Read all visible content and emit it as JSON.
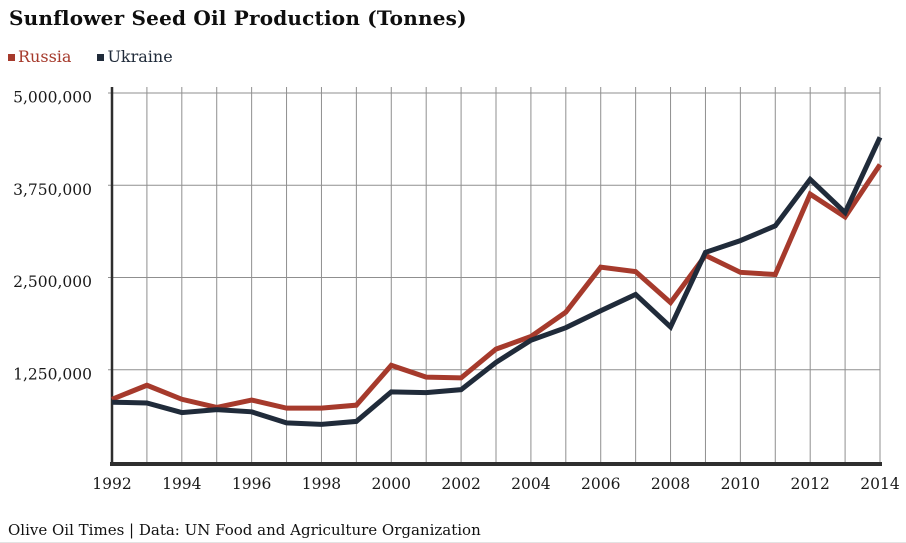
{
  "header": {
    "title": "Sunflower Seed Oil Production (Tonnes)"
  },
  "footer": {
    "text": "Olive Oil Times | Data: UN Food and Agriculture Organization"
  },
  "chart_data": {
    "type": "line",
    "title": "Sunflower Seed Oil Production (Tonnes)",
    "x": [
      1992,
      1993,
      1994,
      1995,
      1996,
      1997,
      1998,
      1999,
      2000,
      2001,
      2002,
      2003,
      2004,
      2005,
      2006,
      2007,
      2008,
      2009,
      2010,
      2011,
      2012,
      2013,
      2014
    ],
    "x_tick_labels": [
      "1992",
      "1994",
      "1996",
      "1998",
      "2000",
      "2002",
      "2004",
      "2006",
      "2008",
      "2010",
      "2012",
      "2014"
    ],
    "y_ticks": [
      {
        "value": 1250000,
        "label": "1,250,000"
      },
      {
        "value": 2500000,
        "label": "2,500,000"
      },
      {
        "value": 3750000,
        "label": "3,750,000"
      },
      {
        "value": 5000000,
        "label": "5,000,000"
      }
    ],
    "xlim": [
      1992,
      2014
    ],
    "ylim": [
      0,
      5000000
    ],
    "grid": "vertical gridline every year, horizontal gridline every 1,250,000",
    "legend_position": "top-left",
    "series": [
      {
        "name": "Russia",
        "color": "#A63A2C",
        "values": [
          850000,
          1040000,
          850000,
          740000,
          840000,
          730000,
          730000,
          770000,
          1310000,
          1150000,
          1140000,
          1530000,
          1700000,
          2030000,
          2640000,
          2580000,
          2160000,
          2800000,
          2570000,
          2540000,
          3630000,
          3320000,
          4030000
        ]
      },
      {
        "name": "Ukraine",
        "color": "#202B3A",
        "values": [
          810000,
          800000,
          670000,
          710000,
          680000,
          530000,
          510000,
          550000,
          950000,
          940000,
          980000,
          1350000,
          1650000,
          1820000,
          2050000,
          2270000,
          1830000,
          2840000,
          3000000,
          3200000,
          3830000,
          3380000,
          4400000
        ]
      }
    ],
    "colors": {
      "grid": "#8F8F8F",
      "axis": "#2E2E2E",
      "text": "#1A1A1A"
    }
  }
}
